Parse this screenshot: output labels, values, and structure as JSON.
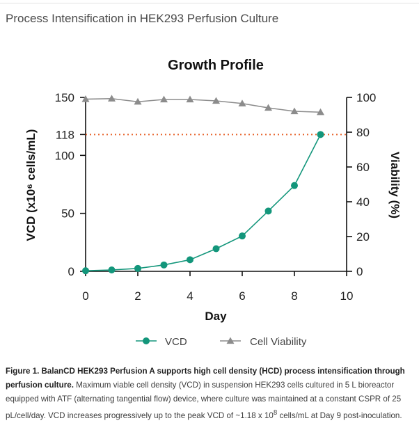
{
  "page": {
    "title": "Process Intensification in HEK293 Perfusion Culture"
  },
  "caption": {
    "bold": "Figure 1. BalanCD HEK293 Perfusion A supports high cell density (HCD) process intensification through perfusion culture.",
    "text_a": " Maximum viable cell density (VCD) in suspension HEK293 cells cultured in 5 L bioreactor equipped with ATF (alternating tangential flow) device, where culture was maintained at a constant CSPR of 25 pL/cell/day. VCD increases progressively up to the peak VCD of ~1.18 x 10",
    "sup": "8",
    "text_b": " cells/mL at Day 9 post-inoculation."
  },
  "chart_data": {
    "type": "line",
    "title": "Growth Profile",
    "xlabel": "Day",
    "ylabel": "VCD (x10⁶ cells/mL)",
    "y2label": "Viability (%)",
    "xlim": [
      0,
      10
    ],
    "ylim": [
      0,
      150
    ],
    "y2lim": [
      0,
      100
    ],
    "x_ticks": [
      "0",
      "2",
      "4",
      "6",
      "8",
      "10"
    ],
    "y_ticks": [
      "0",
      "50",
      "100",
      "118",
      "150"
    ],
    "y2_ticks": [
      "0",
      "20",
      "40",
      "60",
      "80",
      "100"
    ],
    "reference_line": {
      "axis": "y",
      "value": 118,
      "color": "#e8632b"
    },
    "grid": false,
    "legend_position": "bottom-center",
    "series": [
      {
        "name": "VCD",
        "axis": "left",
        "marker": "circle",
        "color": "#13967b",
        "x": [
          0,
          1,
          2,
          3,
          4,
          5,
          6,
          7,
          8,
          9
        ],
        "y": [
          0.5,
          1.2,
          2.5,
          5.5,
          10,
          19.5,
          30.5,
          52,
          74,
          118
        ]
      },
      {
        "name": "Cell Viability",
        "axis": "right",
        "marker": "triangle",
        "color": "#8c8c8c",
        "x": [
          0,
          1,
          2,
          3,
          4,
          5,
          6,
          7,
          8,
          9
        ],
        "y": [
          99,
          99.3,
          97.5,
          98.8,
          98.8,
          98,
          96.5,
          94,
          92,
          91.5
        ]
      }
    ]
  }
}
